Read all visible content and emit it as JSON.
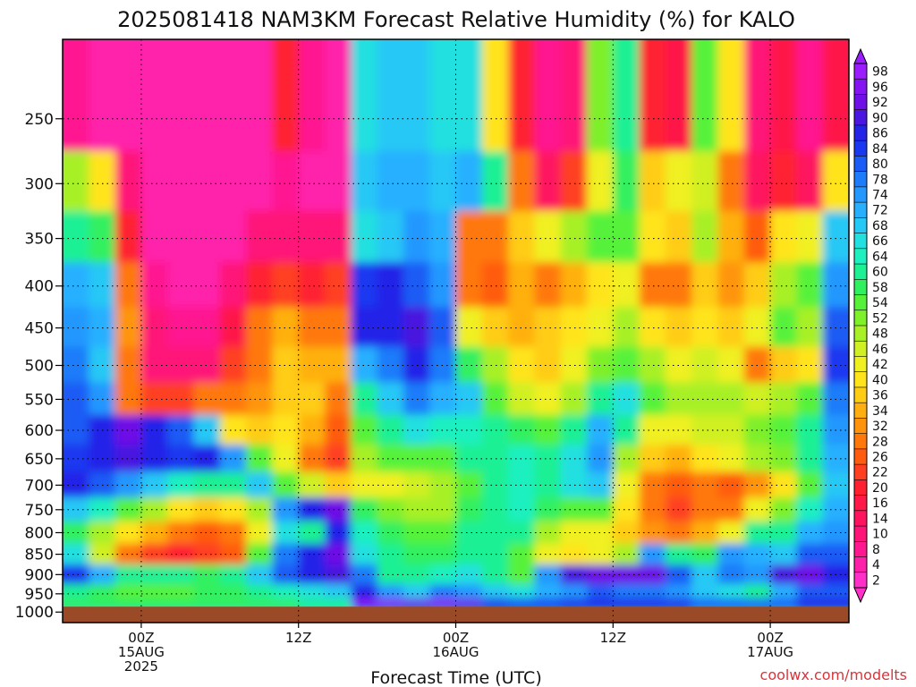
{
  "chart_data": {
    "type": "heatmap",
    "title": "2025081418 NAM3KM Forecast Relative Humidity (%) for KALO",
    "xlabel": "Forecast Time (UTC)",
    "ylabel": "",
    "y_axis": {
      "scale": "log-pressure",
      "inverted": true,
      "ticks": [
        250,
        300,
        350,
        400,
        450,
        500,
        550,
        600,
        650,
        700,
        750,
        800,
        850,
        900,
        950,
        1000
      ],
      "range": [
        200,
        1030
      ]
    },
    "x_axis": {
      "range": [
        "2025-08-14T18:00Z",
        "2025-08-17T06:00Z"
      ],
      "ticks": [
        {
          "time": "2025-08-15T00:00Z",
          "lines": [
            "00Z",
            "15AUG",
            "2025"
          ]
        },
        {
          "time": "2025-08-15T12:00Z",
          "lines": [
            "12Z"
          ]
        },
        {
          "time": "2025-08-16T00:00Z",
          "lines": [
            "00Z",
            "16AUG"
          ]
        },
        {
          "time": "2025-08-16T12:00Z",
          "lines": [
            "12Z"
          ]
        },
        {
          "time": "2025-08-17T00:00Z",
          "lines": [
            "00Z",
            "17AUG"
          ]
        }
      ]
    },
    "grid": true,
    "colorbar": {
      "labels": [
        98,
        96,
        92,
        90,
        86,
        84,
        80,
        78,
        74,
        72,
        68,
        66,
        64,
        60,
        58,
        54,
        52,
        48,
        46,
        42,
        40,
        36,
        34,
        32,
        28,
        26,
        22,
        20,
        16,
        14,
        10,
        8,
        4,
        2
      ],
      "colors": [
        "#9a1cff",
        "#8414f2",
        "#6e10e6",
        "#4a16e0",
        "#2424e8",
        "#1a38f0",
        "#1a5cf5",
        "#1e7cfa",
        "#2498ff",
        "#28b0ff",
        "#26c8f5",
        "#22e0e0",
        "#1ef0c0",
        "#1ef094",
        "#30f060",
        "#56f23a",
        "#7ef02c",
        "#a8f028",
        "#d0f024",
        "#f0f020",
        "#ffe41a",
        "#ffcc14",
        "#ffb010",
        "#ff940c",
        "#ff780a",
        "#ff5c10",
        "#ff4020",
        "#ff2030",
        "#ff1848",
        "#ff1460",
        "#ff1478",
        "#ff1890",
        "#ff20aa",
        "#ff30c8"
      ],
      "position": "right"
    },
    "columns": [
      {
        "time": "2025-08-14T19:00Z",
        "rh": {
          "250": 8,
          "300": 50,
          "350": 62,
          "400": 72,
          "450": 76,
          "500": 78,
          "550": 80,
          "600": 82,
          "650": 84,
          "700": 86,
          "750": 68,
          "800": 58,
          "850": 66,
          "900": 84,
          "950": 62,
          "975": 58
        }
      },
      {
        "time": "2025-08-14T21:00Z",
        "rh": {
          "250": 6,
          "300": 40,
          "350": 58,
          "400": 68,
          "450": 72,
          "500": 70,
          "550": 74,
          "600": 88,
          "650": 86,
          "700": 82,
          "750": 64,
          "800": 48,
          "850": 46,
          "900": 72,
          "950": 58,
          "975": 58
        }
      },
      {
        "time": "2025-08-14T23:00Z",
        "rh": {
          "250": 6,
          "300": 12,
          "350": 20,
          "400": 30,
          "450": 32,
          "500": 28,
          "550": 30,
          "600": 92,
          "650": 90,
          "700": 74,
          "750": 54,
          "800": 40,
          "850": 30,
          "900": 62,
          "950": 56,
          "975": 58
        }
      },
      {
        "time": "2025-08-15T01:00Z",
        "rh": {
          "250": 4,
          "300": 6,
          "350": 6,
          "400": 8,
          "450": 10,
          "500": 12,
          "550": 24,
          "600": 88,
          "650": 88,
          "700": 70,
          "750": 48,
          "800": 34,
          "850": 22,
          "900": 62,
          "950": 56,
          "975": 58
        }
      },
      {
        "time": "2025-08-15T03:00Z",
        "rh": {
          "250": 4,
          "300": 4,
          "350": 6,
          "400": 6,
          "450": 8,
          "500": 10,
          "550": 22,
          "600": 80,
          "650": 84,
          "700": 64,
          "750": 40,
          "800": 28,
          "850": 20,
          "900": 60,
          "950": 56,
          "975": 58
        }
      },
      {
        "time": "2025-08-15T05:00Z",
        "rh": {
          "250": 4,
          "300": 4,
          "350": 4,
          "400": 6,
          "450": 8,
          "500": 12,
          "550": 28,
          "600": 68,
          "650": 86,
          "700": 60,
          "750": 36,
          "800": 26,
          "850": 22,
          "900": 58,
          "950": 58,
          "975": 58
        }
      },
      {
        "time": "2025-08-15T07:00Z",
        "rh": {
          "250": 4,
          "300": 4,
          "350": 6,
          "400": 10,
          "450": 16,
          "500": 22,
          "550": 28,
          "600": 40,
          "650": 74,
          "700": 62,
          "750": 40,
          "800": 30,
          "850": 26,
          "900": 60,
          "950": 58,
          "975": 58
        }
      },
      {
        "time": "2025-08-15T09:00Z",
        "rh": {
          "250": 4,
          "300": 6,
          "350": 12,
          "400": 20,
          "450": 28,
          "500": 30,
          "550": 32,
          "600": 36,
          "650": 54,
          "700": 68,
          "750": 50,
          "800": 44,
          "850": 56,
          "900": 70,
          "950": 60,
          "975": 58
        }
      },
      {
        "time": "2025-08-15T11:00Z",
        "rh": {
          "250": 20,
          "300": 8,
          "350": 10,
          "400": 22,
          "450": 34,
          "500": 36,
          "550": 38,
          "600": 40,
          "650": 42,
          "700": 56,
          "750": 74,
          "800": 66,
          "850": 78,
          "900": 82,
          "950": 64,
          "975": 58
        }
      },
      {
        "time": "2025-08-15T13:00Z",
        "rh": {
          "250": 8,
          "300": 6,
          "350": 10,
          "400": 20,
          "450": 30,
          "500": 34,
          "550": 36,
          "600": 34,
          "650": 30,
          "700": 46,
          "750": 88,
          "800": 60,
          "850": 86,
          "900": 88,
          "950": 66,
          "975": 60
        }
      },
      {
        "time": "2025-08-15T15:00Z",
        "rh": {
          "250": 6,
          "300": 6,
          "350": 12,
          "400": 22,
          "450": 30,
          "500": 34,
          "550": 30,
          "600": 26,
          "650": 24,
          "700": 36,
          "750": 92,
          "800": 88,
          "850": 92,
          "900": 90,
          "950": 70,
          "975": 62
        }
      },
      {
        "time": "2025-08-15T17:00Z",
        "rh": {
          "250": 66,
          "300": 68,
          "350": 66,
          "400": 84,
          "450": 86,
          "500": 72,
          "550": 62,
          "600": 56,
          "650": 50,
          "700": 42,
          "750": 58,
          "800": 64,
          "850": 66,
          "900": 78,
          "950": 88,
          "975": 96
        }
      },
      {
        "time": "2025-08-15T19:00Z",
        "rh": {
          "250": 68,
          "300": 72,
          "350": 70,
          "400": 86,
          "450": 88,
          "500": 78,
          "550": 70,
          "600": 62,
          "650": 54,
          "700": 44,
          "750": 52,
          "800": 58,
          "850": 60,
          "900": 62,
          "950": 74,
          "975": 96
        }
      },
      {
        "time": "2025-08-15T21:00Z",
        "rh": {
          "250": 68,
          "300": 72,
          "350": 74,
          "400": 82,
          "450": 90,
          "500": 86,
          "550": 78,
          "600": 66,
          "650": 56,
          "700": 46,
          "750": 48,
          "800": 56,
          "850": 58,
          "900": 60,
          "950": 70,
          "975": 94
        }
      },
      {
        "time": "2025-08-15T23:00Z",
        "rh": {
          "250": 66,
          "300": 70,
          "350": 72,
          "400": 74,
          "450": 80,
          "500": 78,
          "550": 72,
          "600": 64,
          "650": 56,
          "700": 48,
          "750": 50,
          "800": 54,
          "850": 58,
          "900": 64,
          "950": 78,
          "975": 96
        }
      },
      {
        "time": "2025-08-16T01:00Z",
        "rh": {
          "250": 66,
          "300": 72,
          "350": 30,
          "400": 28,
          "450": 44,
          "500": 58,
          "550": 70,
          "600": 64,
          "650": 60,
          "700": 54,
          "750": 58,
          "800": 60,
          "850": 62,
          "900": 66,
          "950": 76,
          "975": 92
        }
      },
      {
        "time": "2025-08-16T03:00Z",
        "rh": {
          "250": 40,
          "300": 60,
          "350": 28,
          "400": 26,
          "450": 38,
          "500": 48,
          "550": 56,
          "600": 60,
          "650": 62,
          "700": 60,
          "750": 62,
          "800": 62,
          "850": 60,
          "900": 62,
          "950": 70,
          "975": 88
        }
      },
      {
        "time": "2025-08-16T05:00Z",
        "rh": {
          "250": 20,
          "300": 30,
          "350": 36,
          "400": 34,
          "450": 34,
          "500": 40,
          "550": 46,
          "600": 58,
          "650": 64,
          "700": 64,
          "750": 64,
          "800": 60,
          "850": 56,
          "900": 56,
          "950": 66,
          "975": 84
        }
      },
      {
        "time": "2025-08-16T07:00Z",
        "rh": {
          "250": 8,
          "300": 14,
          "350": 44,
          "400": 30,
          "450": 36,
          "500": 38,
          "550": 44,
          "600": 56,
          "650": 62,
          "700": 62,
          "750": 58,
          "800": 50,
          "850": 44,
          "900": 76,
          "950": 72,
          "975": 84
        }
      },
      {
        "time": "2025-08-16T09:00Z",
        "rh": {
          "250": 10,
          "300": 22,
          "350": 48,
          "400": 34,
          "450": 40,
          "500": 44,
          "550": 50,
          "600": 62,
          "650": 66,
          "700": 66,
          "750": 56,
          "800": 44,
          "850": 40,
          "900": 90,
          "950": 76,
          "975": 86
        }
      },
      {
        "time": "2025-08-16T11:00Z",
        "rh": {
          "250": 52,
          "300": 44,
          "350": 54,
          "400": 40,
          "450": 44,
          "500": 52,
          "550": 62,
          "600": 72,
          "650": 76,
          "700": 70,
          "750": 54,
          "800": 42,
          "850": 44,
          "900": 94,
          "950": 80,
          "975": 88
        }
      },
      {
        "time": "2025-08-16T13:00Z",
        "rh": {
          "250": 62,
          "300": 58,
          "350": 56,
          "400": 44,
          "450": 48,
          "500": 56,
          "550": 66,
          "600": 60,
          "650": 50,
          "700": 44,
          "750": 40,
          "800": 36,
          "850": 48,
          "900": 94,
          "950": 78,
          "975": 88
        }
      },
      {
        "time": "2025-08-16T15:00Z",
        "rh": {
          "250": 20,
          "300": 36,
          "350": 40,
          "400": 30,
          "450": 40,
          "500": 50,
          "550": 54,
          "600": 44,
          "650": 36,
          "700": 30,
          "750": 28,
          "800": 32,
          "850": 74,
          "900": 92,
          "950": 78,
          "975": 88
        }
      },
      {
        "time": "2025-08-16T17:00Z",
        "rh": {
          "250": 16,
          "300": 42,
          "350": 38,
          "400": 28,
          "450": 36,
          "500": 44,
          "550": 50,
          "600": 42,
          "650": 34,
          "700": 26,
          "750": 24,
          "800": 30,
          "850": 62,
          "900": 80,
          "950": 74,
          "975": 86
        }
      },
      {
        "time": "2025-08-16T19:00Z",
        "rh": {
          "250": 56,
          "300": 46,
          "350": 50,
          "400": 36,
          "450": 40,
          "500": 46,
          "550": 48,
          "600": 46,
          "650": 40,
          "700": 30,
          "750": 28,
          "800": 34,
          "850": 58,
          "900": 70,
          "950": 68,
          "975": 82
        }
      },
      {
        "time": "2025-08-16T21:00Z",
        "rh": {
          "250": 40,
          "300": 30,
          "350": 34,
          "400": 32,
          "450": 38,
          "500": 44,
          "550": 48,
          "600": 46,
          "650": 44,
          "700": 26,
          "750": 30,
          "800": 44,
          "850": 74,
          "900": 78,
          "950": 66,
          "975": 82
        }
      },
      {
        "time": "2025-08-16T23:00Z",
        "rh": {
          "250": 10,
          "300": 14,
          "350": 26,
          "400": 36,
          "450": 44,
          "500": 30,
          "550": 46,
          "600": 52,
          "650": 48,
          "700": 32,
          "750": 44,
          "800": 60,
          "850": 72,
          "900": 74,
          "950": 62,
          "975": 80
        }
      },
      {
        "time": "2025-08-17T01:00Z",
        "rh": {
          "250": 16,
          "300": 20,
          "350": 40,
          "400": 50,
          "450": 54,
          "500": 36,
          "550": 50,
          "600": 56,
          "650": 52,
          "700": 40,
          "750": 52,
          "800": 62,
          "850": 70,
          "900": 90,
          "950": 72,
          "975": 82
        }
      },
      {
        "time": "2025-08-17T03:00Z",
        "rh": {
          "250": 8,
          "300": 14,
          "350": 44,
          "400": 54,
          "450": 50,
          "500": 40,
          "550": 54,
          "600": 62,
          "650": 60,
          "700": 56,
          "750": 64,
          "800": 72,
          "850": 80,
          "900": 92,
          "950": 80,
          "975": 86
        }
      },
      {
        "time": "2025-08-17T05:00Z",
        "rh": {
          "250": 18,
          "300": 40,
          "350": 70,
          "400": 76,
          "450": 80,
          "500": 84,
          "550": 78,
          "600": 74,
          "650": 72,
          "700": 70,
          "750": 72,
          "800": 76,
          "850": 82,
          "900": 86,
          "950": 80,
          "975": 86
        }
      }
    ],
    "ground_below_hPa": 975
  },
  "credit": "coolwx.com/modelts",
  "colors": {
    "ground": "#9a4a26",
    "background": "#ffffff",
    "grid": "#000000"
  }
}
